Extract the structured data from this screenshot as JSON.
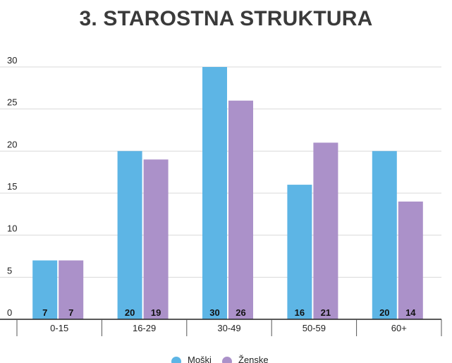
{
  "chart_data": {
    "type": "bar",
    "title": "3. STAROSTNA STRUKTURA",
    "categories": [
      "0-15",
      "16-29",
      "30-49",
      "50-59",
      "60+"
    ],
    "series": [
      {
        "name": "Moški",
        "color": "#5DB5E5",
        "values": [
          7,
          20,
          30,
          16,
          20
        ]
      },
      {
        "name": "Ženske",
        "color": "#AB91C9",
        "values": [
          7,
          19,
          26,
          21,
          14
        ]
      }
    ],
    "yticks": [
      0,
      5,
      10,
      15,
      20,
      25,
      30
    ],
    "ylim": [
      0,
      30
    ],
    "grid": true,
    "legend": "bottom"
  }
}
